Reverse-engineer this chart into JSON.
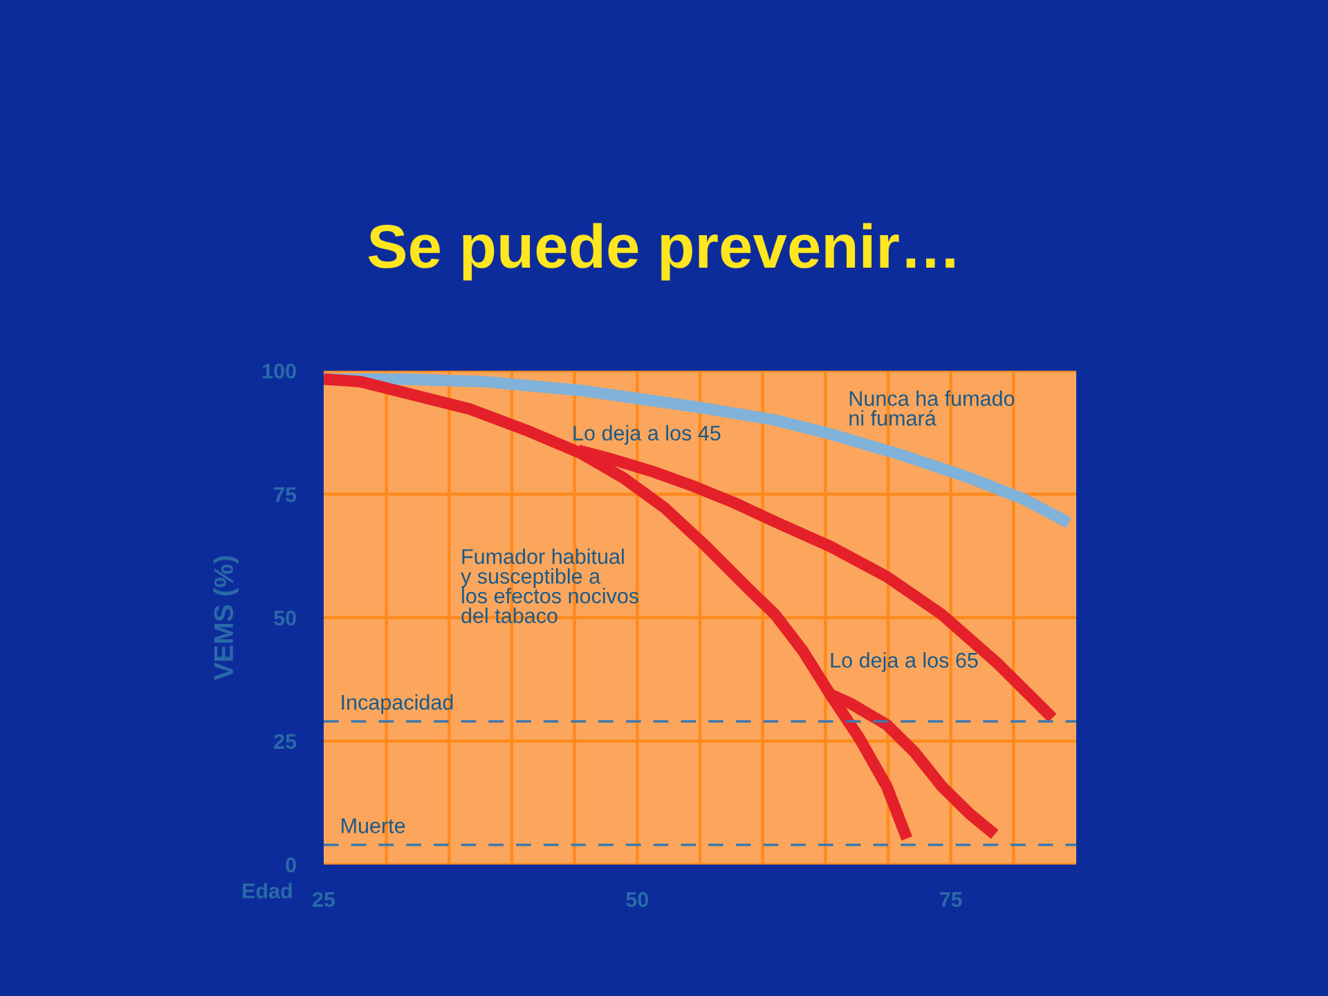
{
  "chart_data": {
    "type": "line",
    "title": "Se puede prevenir…",
    "xlabel": "Edad",
    "ylabel": "VEMS (%)",
    "xlim": [
      25,
      85
    ],
    "ylim": [
      0,
      100
    ],
    "xticks": [
      25,
      50,
      75
    ],
    "yticks": [
      0,
      25,
      50,
      75,
      100
    ],
    "grid": true,
    "line_style": "solid",
    "series": [
      {
        "name": "Nunca ha fumado\nni fumará",
        "color": "#80b2da",
        "x": [
          25,
          31.2,
          37.8,
          45.5,
          54.4,
          61,
          65.4,
          71,
          76.5,
          80.9,
          84.4
        ],
        "values": [
          98.3,
          98.3,
          97.8,
          96,
          92.8,
          90,
          87.2,
          83,
          78.3,
          73.9,
          69.2
        ]
      },
      {
        "name": "Fumador habitual\ny susceptible a\nlos efectos nocivos\ndel tabaco",
        "color": "#e4202a",
        "x": [
          25,
          27.9,
          32.3,
          36.7,
          41.1,
          45.5,
          48.9,
          52.2,
          55.5,
          58.8,
          61,
          63.2,
          65.4,
          67.7,
          69.9,
          71.5
        ],
        "values": [
          98.3,
          97.8,
          95,
          92.2,
          88,
          83.3,
          78.3,
          72.2,
          64.4,
          56,
          50.6,
          43.3,
          34.4,
          25.6,
          15.8,
          5.3
        ]
      },
      {
        "name": "Lo deja a los 45",
        "color": "#e4202a",
        "x": [
          45.3,
          47.8,
          51.1,
          54.4,
          57.7,
          61,
          65.4,
          69.9,
          74.3,
          78.7,
          83.1
        ],
        "values": [
          83.9,
          82.2,
          79.7,
          76.7,
          73.3,
          69.4,
          64.4,
          58.3,
          50.6,
          40.8,
          29.7
        ]
      },
      {
        "name": "Lo deja a los 65",
        "color": "#e4202a",
        "x": [
          65.2,
          67.1,
          69.9,
          72.1,
          74.3,
          76.5,
          78.5
        ],
        "values": [
          34.7,
          32.5,
          28.3,
          22.8,
          15.8,
          10.3,
          6.1
        ]
      }
    ],
    "ref_lines": [
      {
        "axis": "y",
        "value": 29,
        "label": "Incapacidad",
        "color": "#3a78b0",
        "line_style": "dashed"
      },
      {
        "axis": "y",
        "value": 4,
        "label": "Muerte",
        "color": "#3a78b0",
        "line_style": "dashed"
      }
    ]
  }
}
